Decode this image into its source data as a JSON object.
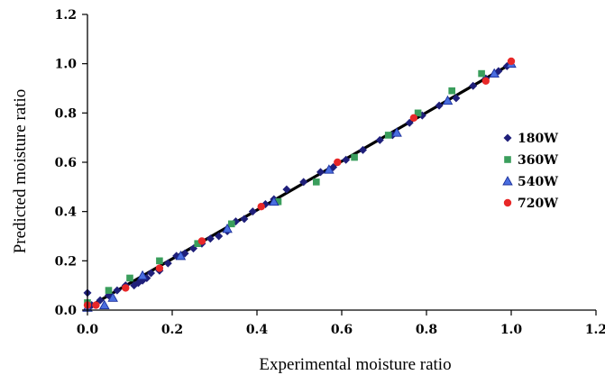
{
  "chart_data": {
    "type": "scatter",
    "xlabel": "Experimental moisture ratio",
    "ylabel": "Predicted moisture ratio",
    "xlim": [
      0,
      1.2
    ],
    "ylim": [
      0,
      1.2
    ],
    "x_ticks": [
      "0.0",
      "0.2",
      "0.4",
      "0.6",
      "0.8",
      "1.0",
      "1.2"
    ],
    "y_ticks": [
      "0.0",
      "0.2",
      "0.4",
      "0.6",
      "0.8",
      "1.0",
      "1.2"
    ],
    "grid": false,
    "legend_position": "right",
    "fit_line": {
      "x": [
        0,
        1.0
      ],
      "y": [
        0.01,
        1.0
      ],
      "color": "#000000"
    },
    "series": [
      {
        "name": "180W",
        "marker": "diamond",
        "color": "#1f1f7a",
        "x": [
          0.0,
          0.01,
          0.03,
          0.05,
          0.07,
          0.09,
          0.11,
          0.12,
          0.13,
          0.14,
          0.15,
          0.17,
          0.19,
          0.21,
          0.23,
          0.25,
          0.27,
          0.29,
          0.31,
          0.33,
          0.35,
          0.37,
          0.39,
          0.42,
          0.44,
          0.47,
          0.51,
          0.55,
          0.58,
          0.61,
          0.65,
          0.69,
          0.72,
          0.76,
          0.79,
          0.83,
          0.87,
          0.91,
          0.94,
          0.97,
          0.99
        ],
        "y": [
          0.07,
          0.02,
          0.04,
          0.06,
          0.08,
          0.1,
          0.1,
          0.11,
          0.12,
          0.13,
          0.15,
          0.16,
          0.19,
          0.22,
          0.23,
          0.25,
          0.27,
          0.29,
          0.3,
          0.32,
          0.36,
          0.37,
          0.4,
          0.43,
          0.45,
          0.49,
          0.52,
          0.56,
          0.58,
          0.61,
          0.65,
          0.69,
          0.71,
          0.76,
          0.79,
          0.83,
          0.86,
          0.91,
          0.94,
          0.97,
          0.99
        ]
      },
      {
        "name": "360W",
        "marker": "square",
        "color": "#3a9e5c",
        "x": [
          0.0,
          0.05,
          0.1,
          0.17,
          0.26,
          0.34,
          0.45,
          0.54,
          0.63,
          0.71,
          0.78,
          0.86,
          0.93
        ],
        "y": [
          0.03,
          0.08,
          0.13,
          0.2,
          0.27,
          0.35,
          0.44,
          0.52,
          0.62,
          0.71,
          0.8,
          0.89,
          0.96
        ]
      },
      {
        "name": "540W",
        "marker": "triangle",
        "color": "#4a6ee0",
        "x": [
          0.0,
          0.04,
          0.06,
          0.13,
          0.22,
          0.33,
          0.44,
          0.57,
          0.73,
          0.85,
          0.96,
          1.0
        ],
        "y": [
          0.01,
          0.02,
          0.05,
          0.14,
          0.22,
          0.33,
          0.44,
          0.57,
          0.72,
          0.85,
          0.96,
          1.0
        ]
      },
      {
        "name": "720W",
        "marker": "circle",
        "color": "#e82828",
        "x": [
          0.0,
          0.02,
          0.09,
          0.17,
          0.27,
          0.41,
          0.59,
          0.77,
          0.94,
          1.0
        ],
        "y": [
          0.02,
          0.02,
          0.09,
          0.17,
          0.28,
          0.42,
          0.6,
          0.78,
          0.93,
          1.01
        ]
      }
    ]
  }
}
